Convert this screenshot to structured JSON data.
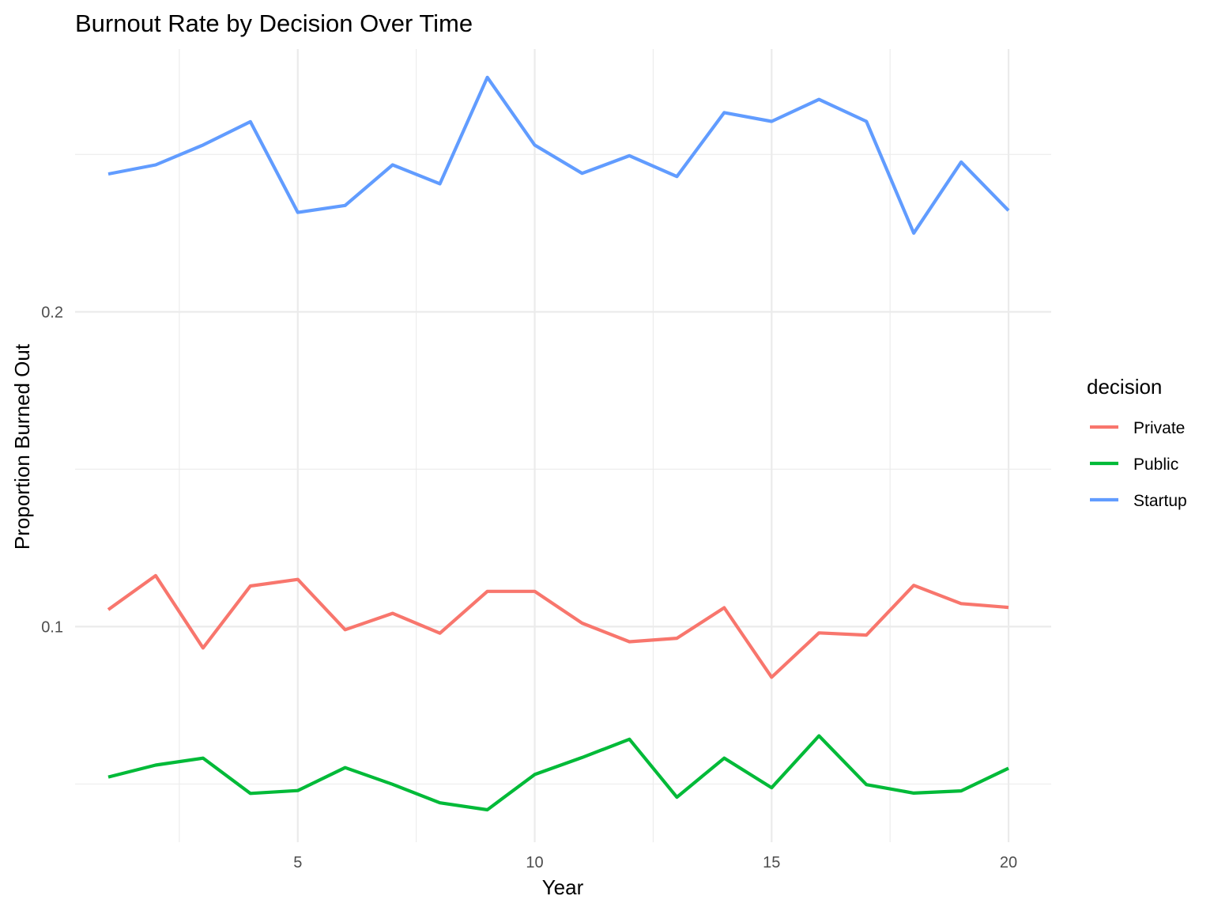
{
  "chart_data": {
    "type": "line",
    "title": "Burnout Rate by Decision Over Time",
    "xlabel": "Year",
    "ylabel": "Proportion Burned Out",
    "xlim": [
      0.3,
      20.9
    ],
    "ylim": [
      0.0315,
      0.2835
    ],
    "x_ticks": [
      5,
      10,
      15,
      20
    ],
    "x_tick_labels": [
      "5",
      "10",
      "15",
      "20"
    ],
    "y_ticks": [
      0.1,
      0.2
    ],
    "y_tick_labels": [
      "0.1",
      "0.2"
    ],
    "grid": true,
    "legend": {
      "title": "decision",
      "position": "right"
    },
    "x": [
      1,
      2,
      3,
      4,
      5,
      6,
      7,
      8,
      9,
      10,
      11,
      12,
      13,
      14,
      15,
      16,
      17,
      18,
      19,
      20
    ],
    "series": [
      {
        "name": "Private",
        "color": "#f8766d",
        "values": [
          0.1054,
          0.1162,
          0.0932,
          0.1129,
          0.115,
          0.099,
          0.1042,
          0.0979,
          0.1112,
          0.1112,
          0.1011,
          0.0952,
          0.0963,
          0.106,
          0.0839,
          0.098,
          0.0973,
          0.1131,
          0.1073,
          0.1061
        ]
      },
      {
        "name": "Public",
        "color": "#00ba38",
        "values": [
          0.0522,
          0.056,
          0.0582,
          0.047,
          0.0479,
          0.0552,
          0.0499,
          0.044,
          0.0418,
          0.053,
          0.0584,
          0.0642,
          0.0458,
          0.0582,
          0.0488,
          0.0653,
          0.0498,
          0.0471,
          0.0478,
          0.055
        ]
      },
      {
        "name": "Startup",
        "color": "#619cff",
        "values": [
          0.2438,
          0.2467,
          0.253,
          0.2604,
          0.2316,
          0.2338,
          0.2467,
          0.2407,
          0.2745,
          0.253,
          0.244,
          0.2496,
          0.243,
          0.2633,
          0.2605,
          0.2675,
          0.2605,
          0.225,
          0.2476,
          0.2322
        ]
      }
    ]
  }
}
